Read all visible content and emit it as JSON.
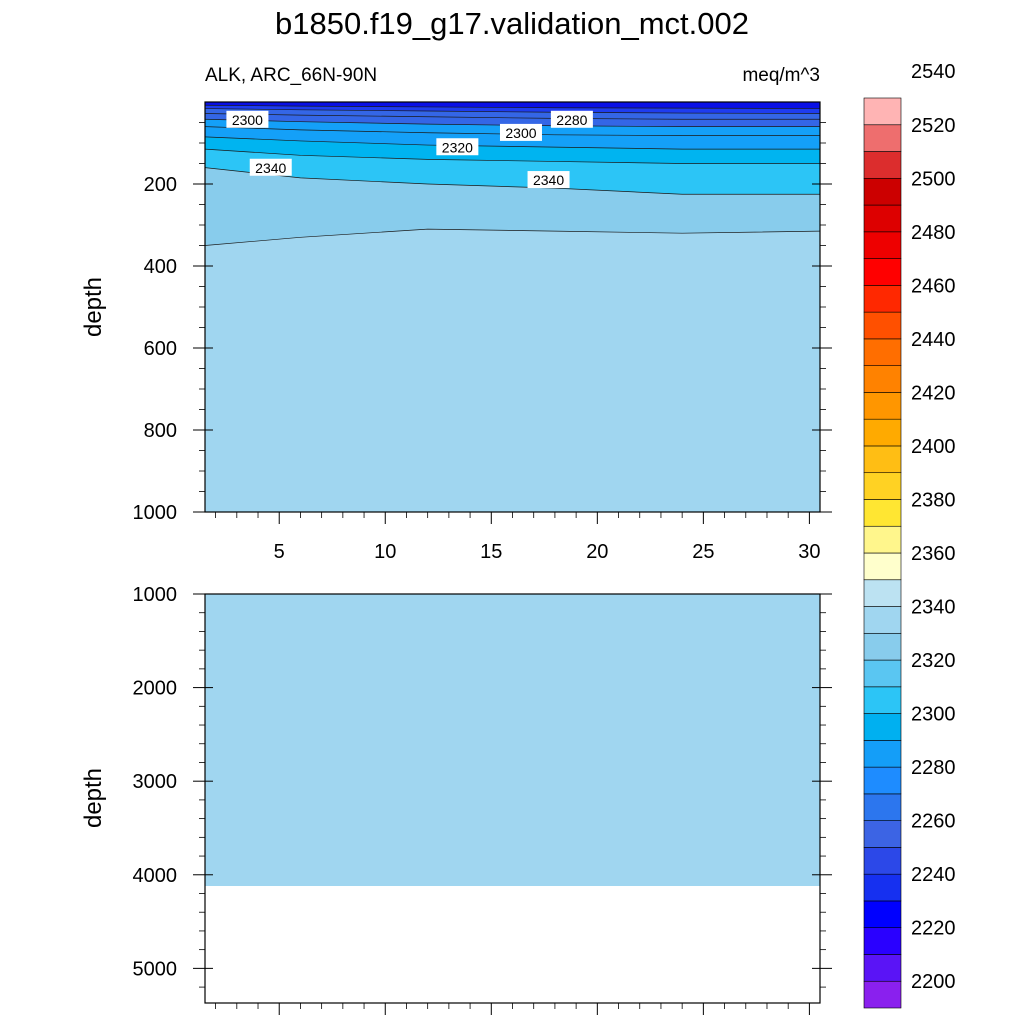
{
  "chart_data": [
    {
      "type": "heatmap",
      "title": "b1850.f19_g17.validation_mct.002",
      "subtitle_left": "ALK, ARC_66N-90N",
      "subtitle_right": "meq/m^3",
      "xlabel": "",
      "ylabel": "depth",
      "xlim": [
        1.5,
        30.5
      ],
      "ylim": [
        1000,
        0
      ],
      "x_ticks": [
        5,
        10,
        15,
        20,
        25,
        30
      ],
      "y_ticks": [
        200,
        400,
        600,
        800,
        1000
      ],
      "layers": [
        {
          "from_depth": 0,
          "to_depth": 8,
          "color": "#0a10e6"
        },
        {
          "from_depth": 8,
          "to_depth": 20,
          "color": "#1e3cf0"
        },
        {
          "from_depth": 20,
          "to_depth": 35,
          "color": "#3466e6"
        },
        {
          "from_depth": 35,
          "to_depth": 50,
          "color": "#1e8cff"
        },
        {
          "from_depth": 50,
          "to_depth": 75,
          "color": "#14a0f8"
        },
        {
          "from_depth": 75,
          "to_depth": 110,
          "color": "#00b4f0"
        },
        {
          "from_depth": 110,
          "to_depth": 150,
          "color": "#2cc5f6"
        },
        {
          "from_depth": 150,
          "to_depth": 210,
          "color": "#5ac6f2"
        },
        {
          "from_depth": 210,
          "to_depth": 330,
          "color": "#88ccec"
        },
        {
          "from_depth": 330,
          "to_depth": 1000,
          "color": "#a0d6f0"
        }
      ],
      "contours": [
        {
          "x": [
            1.5,
            6,
            12,
            18,
            24,
            30.5
          ],
          "depth": [
            350,
            330,
            310,
            315,
            320,
            315
          ]
        },
        {
          "x": [
            1.5,
            6,
            12,
            18,
            24,
            30.5
          ],
          "depth": [
            160,
            185,
            200,
            210,
            225,
            225
          ]
        },
        {
          "x": [
            1.5,
            6,
            12,
            18,
            24,
            30.5
          ],
          "depth": [
            115,
            130,
            140,
            145,
            150,
            150
          ]
        },
        {
          "x": [
            1.5,
            6,
            12,
            18,
            24,
            30.5
          ],
          "depth": [
            85,
            95,
            105,
            110,
            115,
            115
          ]
        },
        {
          "x": [
            1.5,
            6,
            12,
            18,
            24,
            30.5
          ],
          "depth": [
            60,
            68,
            75,
            80,
            82,
            82
          ]
        },
        {
          "x": [
            1.5,
            6,
            12,
            18,
            24,
            30.5
          ],
          "depth": [
            42,
            48,
            54,
            58,
            60,
            60
          ]
        },
        {
          "x": [
            1.5,
            6,
            12,
            18,
            24,
            30.5
          ],
          "depth": [
            28,
            32,
            36,
            40,
            42,
            42
          ]
        },
        {
          "x": [
            1.5,
            6,
            12,
            18,
            24,
            30.5
          ],
          "depth": [
            16,
            19,
            22,
            25,
            27,
            28
          ]
        },
        {
          "x": [
            1.5,
            6,
            12,
            18,
            24,
            30.5
          ],
          "depth": [
            8,
            10,
            12,
            14,
            15,
            16
          ]
        }
      ],
      "contour_labels": [
        {
          "text": "2300",
          "x": 3.5,
          "depth": 58
        },
        {
          "text": "2280",
          "x": 18.8,
          "depth": 58
        },
        {
          "text": "2300",
          "x": 16.4,
          "depth": 90
        },
        {
          "text": "2320",
          "x": 13.4,
          "depth": 125
        },
        {
          "text": "2340",
          "x": 4.6,
          "depth": 175
        },
        {
          "text": "2340",
          "x": 17.7,
          "depth": 205
        }
      ]
    },
    {
      "type": "heatmap",
      "xlabel": "",
      "ylabel": "depth",
      "xlim": [
        1.5,
        30.5
      ],
      "ylim": [
        5370,
        1000
      ],
      "y_ticks": [
        1000,
        2000,
        3000,
        4000,
        5000
      ],
      "fill_color": "#a0d6f0",
      "fill_value": "2350-2360",
      "data_bottom_depth": 4120
    }
  ],
  "colorbar": {
    "bins": [
      {
        "color": "#8a20ee"
      },
      {
        "color": "#5a14f6"
      },
      {
        "color": "#2a00ff"
      },
      {
        "color": "#0000ff"
      },
      {
        "color": "#1630f0"
      },
      {
        "color": "#2c48e8"
      },
      {
        "color": "#3c64e4"
      },
      {
        "color": "#2c76ee"
      },
      {
        "color": "#1e8cff"
      },
      {
        "color": "#149ef8"
      },
      {
        "color": "#00b0f0"
      },
      {
        "color": "#2cc5f6"
      },
      {
        "color": "#5ac6f2"
      },
      {
        "color": "#88ccec"
      },
      {
        "color": "#a0d6f0"
      },
      {
        "color": "#bce2f2"
      },
      {
        "color": "#ffffcc"
      },
      {
        "color": "#fff68c"
      },
      {
        "color": "#ffe632"
      },
      {
        "color": "#ffd223"
      },
      {
        "color": "#ffbe14"
      },
      {
        "color": "#ffaa00"
      },
      {
        "color": "#ff9600"
      },
      {
        "color": "#ff8200"
      },
      {
        "color": "#ff6e00"
      },
      {
        "color": "#ff5000"
      },
      {
        "color": "#ff2800"
      },
      {
        "color": "#ff0000"
      },
      {
        "color": "#ee0000"
      },
      {
        "color": "#dd0000"
      },
      {
        "color": "#cc0000"
      },
      {
        "color": "#dc2d2d"
      },
      {
        "color": "#ee6e6e"
      },
      {
        "color": "#ffb4b4"
      }
    ],
    "labels": [
      "2200",
      "2220",
      "2240",
      "2260",
      "2280",
      "2300",
      "2320",
      "2340",
      "2360",
      "2380",
      "2400",
      "2420",
      "2440",
      "2460",
      "2480",
      "2500",
      "2520",
      "2540"
    ]
  }
}
